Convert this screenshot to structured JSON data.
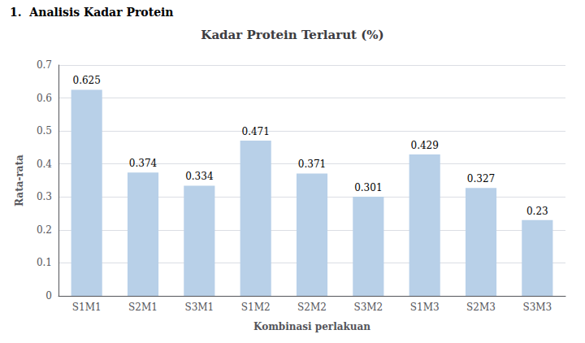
{
  "chart_data": {
    "type": "bar",
    "title": "Kadar Protein Terlarut (%)",
    "annotations": [
      "1.  Analisis Kadar Protein"
    ],
    "xlabel": "Kombinasi perlakuan",
    "ylabel": "Rata-rata",
    "categories": [
      "S1M1",
      "S2M1",
      "S3M1",
      "S1M2",
      "S2M2",
      "S3M2",
      "S1M3",
      "S2M3",
      "S3M3"
    ],
    "values": [
      0.625,
      0.374,
      0.334,
      0.471,
      0.371,
      0.301,
      0.429,
      0.327,
      0.23
    ],
    "color": "#b8d0e8",
    "ylim": [
      0,
      0.7
    ],
    "yticks": [
      0,
      0.1,
      0.2,
      0.3,
      0.4,
      0.5,
      0.6,
      0.7
    ],
    "grid": true,
    "data_labels": true
  }
}
